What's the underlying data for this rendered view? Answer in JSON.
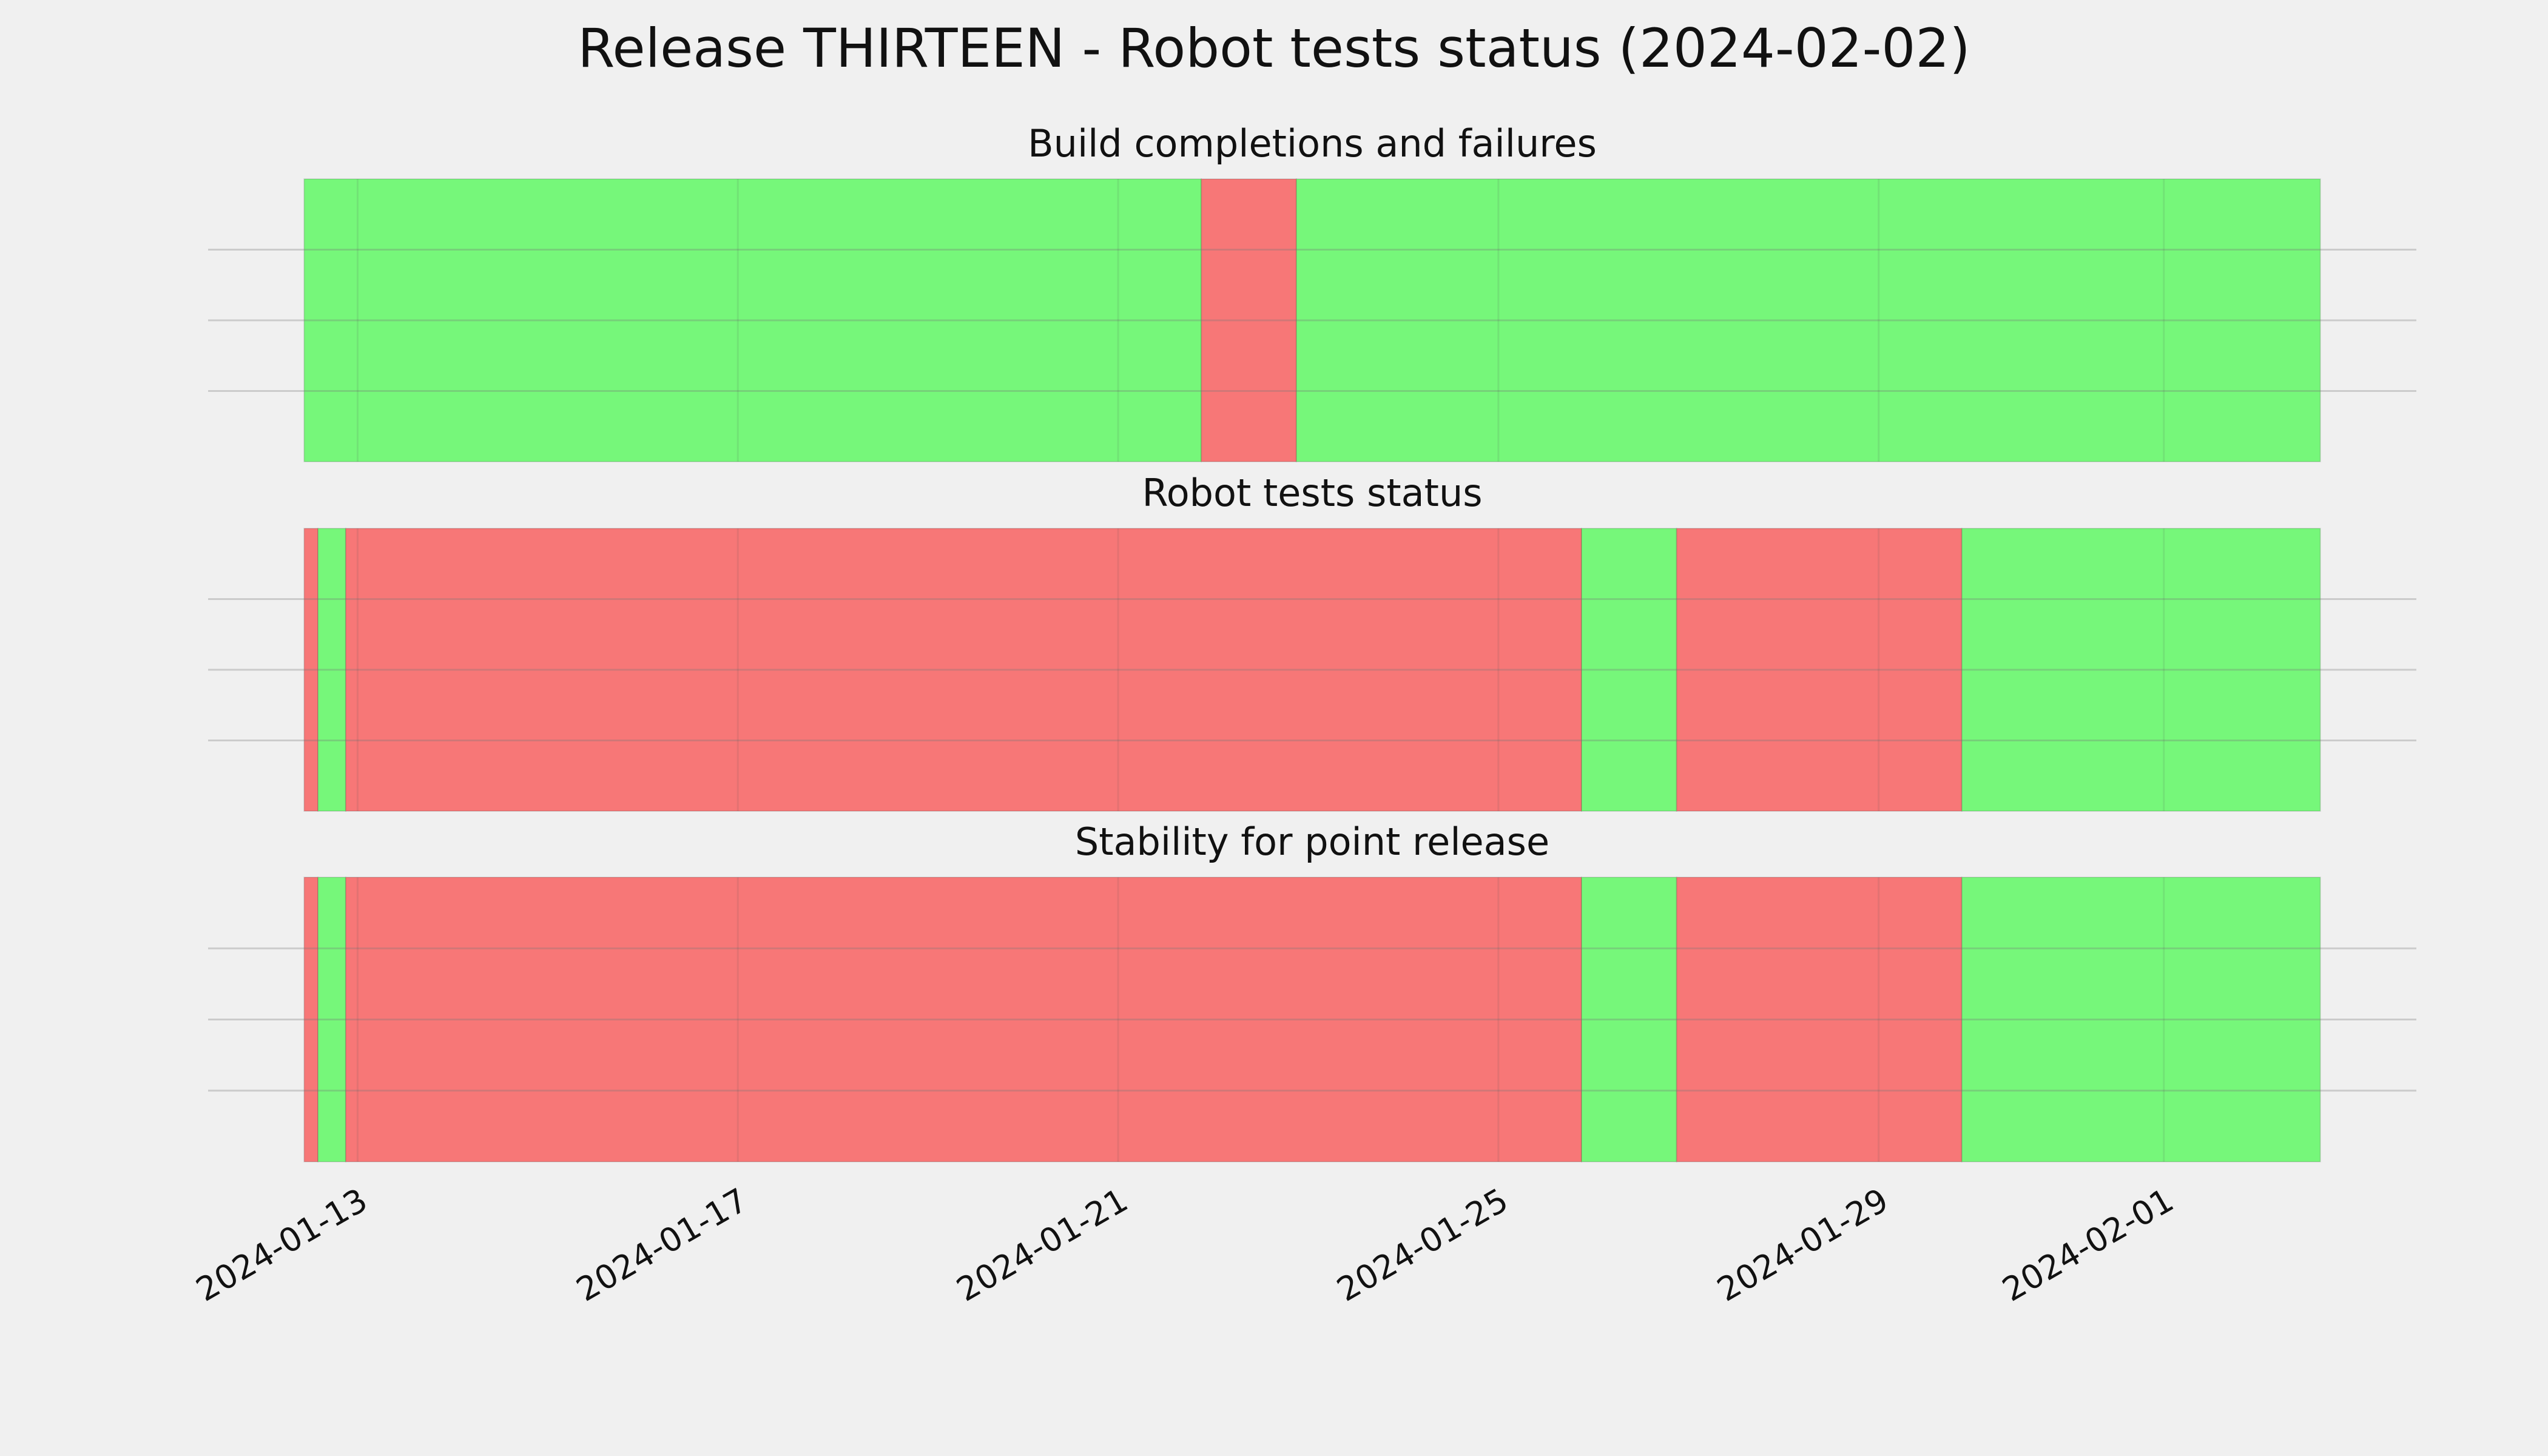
{
  "title": "Release THIRTEEN - Robot tests status (2024-02-02)",
  "chart_data": [
    {
      "type": "timeline",
      "title": "Build completions and failures",
      "xlim": [
        "2024-01-11T10:15",
        "2024-02-03T15:45"
      ],
      "ylim": [
        0,
        1
      ],
      "yticks": [
        0.25,
        0.5,
        0.75
      ],
      "grid": true,
      "xticks": [
        "2024-01-13",
        "2024-01-17",
        "2024-01-21",
        "2024-01-25",
        "2024-01-29",
        "2024-02-01"
      ],
      "spans": [
        {
          "start": "2024-01-12T10:30",
          "end": "2024-01-21T21:00",
          "color": "#76f77a"
        },
        {
          "start": "2024-01-21T21:00",
          "end": "2024-01-22T21:00",
          "color": "#f77777"
        },
        {
          "start": "2024-01-22T21:00",
          "end": "2024-02-02T15:30",
          "color": "#76f77a"
        }
      ]
    },
    {
      "type": "timeline",
      "title": "Robot tests status",
      "xlim": [
        "2024-01-11T10:15",
        "2024-02-03T15:45"
      ],
      "ylim": [
        0,
        1
      ],
      "yticks": [
        0.25,
        0.5,
        0.75
      ],
      "grid": true,
      "xticks": [
        "2024-01-13",
        "2024-01-17",
        "2024-01-21",
        "2024-01-25",
        "2024-01-29",
        "2024-02-01"
      ],
      "spans": [
        {
          "start": "2024-01-12T10:30",
          "end": "2024-01-12T14:00",
          "color": "#f77777"
        },
        {
          "start": "2024-01-12T14:00",
          "end": "2024-01-12T21:00",
          "color": "#76f77a"
        },
        {
          "start": "2024-01-12T21:00",
          "end": "2024-01-25T21:00",
          "color": "#f77777"
        },
        {
          "start": "2024-01-25T21:00",
          "end": "2024-01-26T21:00",
          "color": "#76f77a"
        },
        {
          "start": "2024-01-26T21:00",
          "end": "2024-01-29T21:00",
          "color": "#f77777"
        },
        {
          "start": "2024-01-29T21:00",
          "end": "2024-02-02T15:30",
          "color": "#76f77a"
        }
      ]
    },
    {
      "type": "timeline",
      "title": "Stability for point release",
      "xlim": [
        "2024-01-11T10:15",
        "2024-02-03T15:45"
      ],
      "ylim": [
        0,
        1
      ],
      "yticks": [
        0.25,
        0.5,
        0.75
      ],
      "grid": true,
      "xticks": [
        "2024-01-13",
        "2024-01-17",
        "2024-01-21",
        "2024-01-25",
        "2024-01-29",
        "2024-02-01"
      ],
      "spans": [
        {
          "start": "2024-01-12T10:30",
          "end": "2024-01-12T14:00",
          "color": "#f77777"
        },
        {
          "start": "2024-01-12T14:00",
          "end": "2024-01-12T21:00",
          "color": "#76f77a"
        },
        {
          "start": "2024-01-12T21:00",
          "end": "2024-01-25T21:00",
          "color": "#f77777"
        },
        {
          "start": "2024-01-25T21:00",
          "end": "2024-01-26T21:00",
          "color": "#76f77a"
        },
        {
          "start": "2024-01-26T21:00",
          "end": "2024-01-29T21:00",
          "color": "#f77777"
        },
        {
          "start": "2024-01-29T21:00",
          "end": "2024-02-02T15:30",
          "color": "#76f77a"
        }
      ]
    }
  ]
}
